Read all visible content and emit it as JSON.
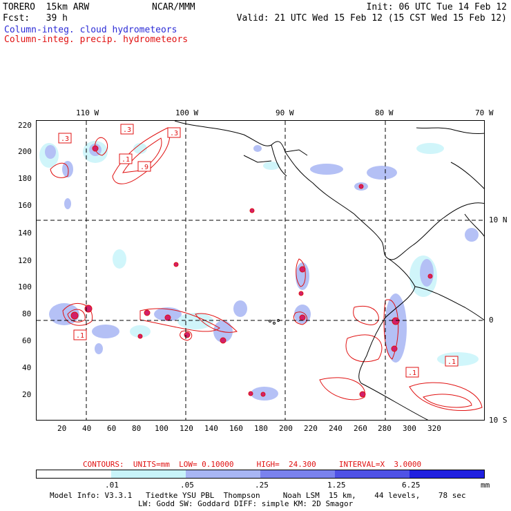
{
  "header": {
    "model": "TORERO  15km ARW",
    "org": "NCAR/MMM",
    "init": "Init: 06 UTC Tue 14 Feb 12",
    "fcst": "Fcst:   39 h",
    "valid": "Valid: 21 UTC Wed 15 Feb 12 (15 CST Wed 15 Feb 12)",
    "field_cloud": "Column-integ. cloud hydrometeors",
    "field_precip": "Column-integ. precip. hydrometeors"
  },
  "map": {
    "top_lon_labels": [
      "110 W",
      "100 W",
      "90 W",
      "80 W",
      "70 W"
    ],
    "right_lat_labels": [
      "10 N",
      "0",
      "10 S"
    ],
    "y_ticks": [
      "220",
      "200",
      "180",
      "160",
      "140",
      "120",
      "100",
      "80",
      "60",
      "40",
      "20"
    ],
    "x_ticks": [
      "20",
      "40",
      "60",
      "80",
      "100",
      "120",
      "140",
      "160",
      "180",
      "200",
      "220",
      "240",
      "260",
      "280",
      "300",
      "320"
    ],
    "contour_labels": [
      ".3",
      ".3",
      ".3",
      ".1",
      ".9",
      ".1",
      ".1",
      ".1"
    ]
  },
  "footer": {
    "contours": "CONTOURS:  UNITS=mm  LOW= 0.10000     HIGH=  24.300     INTERVAL=X  3.0000",
    "colorbar_labels": [
      ".01",
      ".05",
      ".25",
      "1.25",
      "6.25"
    ],
    "colorbar_unit": "mm",
    "colorbar_colors": [
      "#ffffff",
      "#c8f4fa",
      "#a8b6f4",
      "#7a82ee",
      "#4f52e6",
      "#2020e0"
    ],
    "model_info_1": "Model Info: V3.3.1   Tiedtke YSU PBL  Thompson     Noah LSM  15 km,    44 levels,    78 sec",
    "model_info_2": "LW: Godd SW: Goddard DIFF: simple KM: 2D Smagor"
  },
  "colors": {
    "cloud": "#2b2bd6",
    "precip": "#e01010",
    "coast": "#000000"
  }
}
